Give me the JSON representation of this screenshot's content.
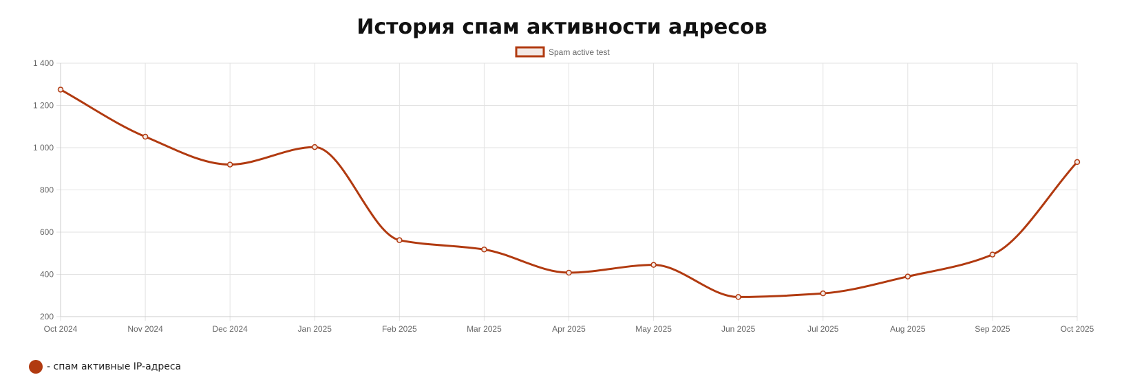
{
  "chart_data": {
    "type": "line",
    "title": "История спам активности адресов",
    "legend": {
      "label": "Spam active test",
      "placement": "top-center"
    },
    "x": [
      "Oct 2024",
      "Nov 2024",
      "Dec 2024",
      "Jan 2025",
      "Feb 2025",
      "Mar 2025",
      "Apr 2025",
      "May 2025",
      "Jun 2025",
      "Jul 2025",
      "Aug 2025",
      "Sep 2025",
      "Oct 2025"
    ],
    "series": [
      {
        "name": "Spam active test",
        "values": [
          1275,
          1052,
          920,
          1003,
          562,
          518,
          408,
          445,
          293,
          310,
          390,
          494,
          932
        ],
        "color": "#b13a10"
      }
    ],
    "ylim": [
      200,
      1400
    ],
    "yticks": [
      "1 400",
      "1 200",
      "1 000",
      "800",
      "600",
      "400",
      "200"
    ],
    "ytick_values": [
      1400,
      1200,
      1000,
      800,
      600,
      400,
      200
    ],
    "grid": true,
    "smooth": true
  },
  "footer_legend": {
    "label": "- спам активные IP-адреса",
    "color": "#b13a10"
  }
}
